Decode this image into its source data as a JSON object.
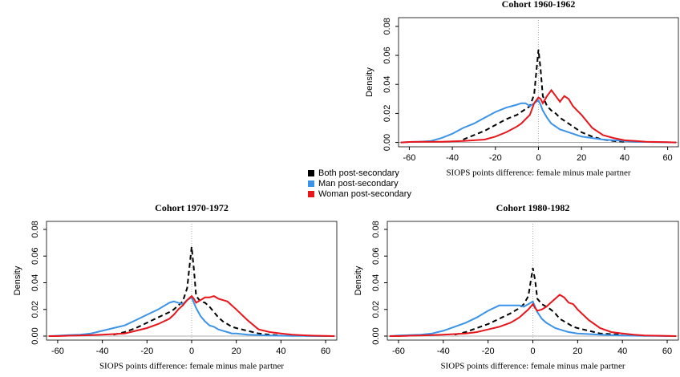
{
  "chart_data": [
    {
      "type": "line",
      "title": "Cohort 1960-1962",
      "xlabel": "SIOPS points difference: female minus male partner",
      "ylabel": "Density",
      "x": [
        -64,
        -60,
        -55,
        -50,
        -45,
        -40,
        -35,
        -30,
        -25,
        -20,
        -15,
        -10,
        -8,
        -6,
        -4,
        -2,
        0,
        1,
        2,
        4,
        6,
        8,
        10,
        12,
        14,
        16,
        18,
        20,
        25,
        30,
        35,
        40,
        45,
        50,
        55,
        60,
        64
      ],
      "series": [
        {
          "name": "Both post-secondary",
          "color": "#000000",
          "dashed": true,
          "values": [
            null,
            null,
            null,
            null,
            null,
            null,
            0.002,
            0.005,
            0.008,
            0.012,
            0.016,
            0.019,
            0.021,
            0.023,
            0.025,
            0.033,
            0.064,
            0.05,
            0.032,
            0.025,
            0.022,
            0.02,
            0.017,
            0.015,
            0.013,
            0.011,
            0.009,
            0.007,
            0.004,
            0.002,
            0.001,
            0.0005,
            null,
            null,
            null,
            null,
            null
          ]
        },
        {
          "name": "Man post-secondary",
          "color": "#3a93e8",
          "dashed": false,
          "values": [
            0,
            0.0003,
            0.0005,
            0.001,
            0.003,
            0.006,
            0.01,
            0.013,
            0.017,
            0.021,
            0.024,
            0.026,
            0.027,
            0.027,
            0.025,
            0.027,
            0.029,
            0.026,
            0.022,
            0.017,
            0.013,
            0.011,
            0.009,
            0.008,
            0.007,
            0.006,
            0.005,
            0.004,
            0.003,
            0.002,
            0.0015,
            0.001,
            0.0005,
            0.0003,
            0.0002,
            0.0001,
            0
          ]
        },
        {
          "name": "Woman post-secondary",
          "color": "#e8151b",
          "dashed": false,
          "values": [
            0,
            0.0003,
            0.0005,
            0.0005,
            0.0005,
            0.0007,
            0.001,
            0.0015,
            0.002,
            0.004,
            0.007,
            0.011,
            0.013,
            0.016,
            0.019,
            0.027,
            0.031,
            0.03,
            0.027,
            0.032,
            0.036,
            0.032,
            0.028,
            0.032,
            0.03,
            0.025,
            0.022,
            0.019,
            0.01,
            0.005,
            0.003,
            0.0015,
            0.001,
            0.0005,
            0.0003,
            0.0002,
            0
          ]
        }
      ],
      "xlim": [
        -65,
        65
      ],
      "ylim": [
        -0.003,
        0.086
      ],
      "xticks": [
        -60,
        -40,
        -20,
        0,
        20,
        40,
        60
      ],
      "yticks": [
        {
          "value": 0,
          "label": "0.00"
        },
        0.02,
        0.04,
        0.06,
        0.08
      ]
    },
    {
      "type": "line",
      "title": "Cohort 1970-1972",
      "xlabel": "SIOPS points difference: female minus male partner",
      "ylabel": "Density",
      "x": [
        -64,
        -60,
        -55,
        -50,
        -45,
        -40,
        -35,
        -30,
        -25,
        -20,
        -15,
        -10,
        -8,
        -6,
        -4,
        -2,
        0,
        1,
        2,
        4,
        6,
        8,
        10,
        12,
        14,
        16,
        18,
        20,
        25,
        30,
        35,
        40,
        45,
        50,
        55,
        60,
        64
      ],
      "series": [
        {
          "name": "Both post-secondary",
          "color": "#000000",
          "dashed": true,
          "values": [
            null,
            null,
            null,
            null,
            null,
            null,
            0.001,
            0.003,
            0.006,
            0.01,
            0.014,
            0.018,
            0.02,
            0.023,
            0.026,
            0.036,
            0.067,
            0.05,
            0.03,
            0.026,
            0.025,
            0.022,
            0.018,
            0.014,
            0.011,
            0.009,
            0.007,
            0.006,
            0.004,
            0.002,
            0.001,
            0.0005,
            null,
            null,
            null,
            null,
            null
          ]
        },
        {
          "name": "Man post-secondary",
          "color": "#3a93e8",
          "dashed": false,
          "values": [
            0,
            0.0003,
            0.0007,
            0.001,
            0.002,
            0.004,
            0.006,
            0.008,
            0.012,
            0.016,
            0.02,
            0.025,
            0.026,
            0.025,
            0.024,
            0.027,
            0.029,
            0.025,
            0.021,
            0.015,
            0.011,
            0.008,
            0.007,
            0.005,
            0.004,
            0.003,
            0.002,
            0.002,
            0.001,
            0.0007,
            0.0005,
            0.0003,
            0.0002,
            0.0001,
            0,
            0,
            0
          ]
        },
        {
          "name": "Woman post-secondary",
          "color": "#e8151b",
          "dashed": false,
          "values": [
            0,
            0,
            0.0003,
            0.0005,
            0.0007,
            0.001,
            0.0015,
            0.002,
            0.004,
            0.006,
            0.009,
            0.013,
            0.016,
            0.02,
            0.023,
            0.027,
            0.03,
            0.028,
            0.025,
            0.027,
            0.029,
            0.029,
            0.03,
            0.028,
            0.027,
            0.026,
            0.023,
            0.02,
            0.012,
            0.005,
            0.003,
            0.002,
            0.001,
            0.0006,
            0.0003,
            0.0001,
            0
          ]
        }
      ],
      "xlim": [
        -65,
        65
      ],
      "ylim": [
        -0.003,
        0.086
      ],
      "xticks": [
        -60,
        -40,
        -20,
        0,
        20,
        40,
        60
      ],
      "yticks": [
        {
          "value": 0,
          "label": "0.00"
        },
        0.02,
        0.04,
        0.06,
        0.08
      ]
    },
    {
      "type": "line",
      "title": "Cohort 1980-1982",
      "xlabel": "SIOPS points difference: female minus male partner",
      "ylabel": "Density",
      "x": [
        -64,
        -60,
        -55,
        -50,
        -45,
        -40,
        -35,
        -30,
        -25,
        -20,
        -15,
        -10,
        -8,
        -6,
        -4,
        -2,
        0,
        1,
        2,
        4,
        6,
        8,
        10,
        12,
        14,
        16,
        18,
        20,
        25,
        30,
        35,
        40,
        45,
        50,
        55,
        60,
        64
      ],
      "series": [
        {
          "name": "Both post-secondary",
          "color": "#000000",
          "dashed": true,
          "values": [
            null,
            null,
            null,
            null,
            null,
            null,
            0.001,
            0.003,
            0.006,
            0.009,
            0.013,
            0.017,
            0.019,
            0.021,
            0.024,
            0.03,
            0.051,
            0.042,
            0.028,
            0.024,
            0.022,
            0.02,
            0.017,
            0.013,
            0.011,
            0.009,
            0.007,
            0.006,
            0.004,
            0.002,
            0.0015,
            0.001,
            null,
            null,
            null,
            null,
            null
          ]
        },
        {
          "name": "Man post-secondary",
          "color": "#3a93e8",
          "dashed": false,
          "values": [
            0,
            0.0005,
            0.0007,
            0.001,
            0.002,
            0.004,
            0.007,
            0.01,
            0.014,
            0.019,
            0.023,
            0.023,
            0.023,
            0.023,
            0.022,
            0.024,
            0.026,
            0.022,
            0.018,
            0.013,
            0.01,
            0.008,
            0.006,
            0.005,
            0.004,
            0.003,
            0.0025,
            0.002,
            0.0015,
            0.001,
            0.0007,
            0.0005,
            0.0003,
            0.0002,
            0.0001,
            0,
            0
          ]
        },
        {
          "name": "Woman post-secondary",
          "color": "#e8151b",
          "dashed": false,
          "values": [
            0,
            0,
            0.0003,
            0.0005,
            0.0007,
            0.001,
            0.0015,
            0.002,
            0.003,
            0.005,
            0.007,
            0.01,
            0.012,
            0.014,
            0.017,
            0.02,
            0.024,
            0.021,
            0.019,
            0.02,
            0.022,
            0.025,
            0.028,
            0.031,
            0.029,
            0.025,
            0.024,
            0.02,
            0.012,
            0.006,
            0.003,
            0.002,
            0.001,
            0.0005,
            0.0003,
            0.0001,
            0
          ]
        }
      ],
      "xlim": [
        -65,
        65
      ],
      "ylim": [
        -0.003,
        0.086
      ],
      "xticks": [
        -60,
        -40,
        -20,
        0,
        20,
        40,
        60
      ],
      "yticks": [
        {
          "value": 0,
          "label": "0.00"
        },
        0.02,
        0.04,
        0.06,
        0.08
      ]
    }
  ]
}
